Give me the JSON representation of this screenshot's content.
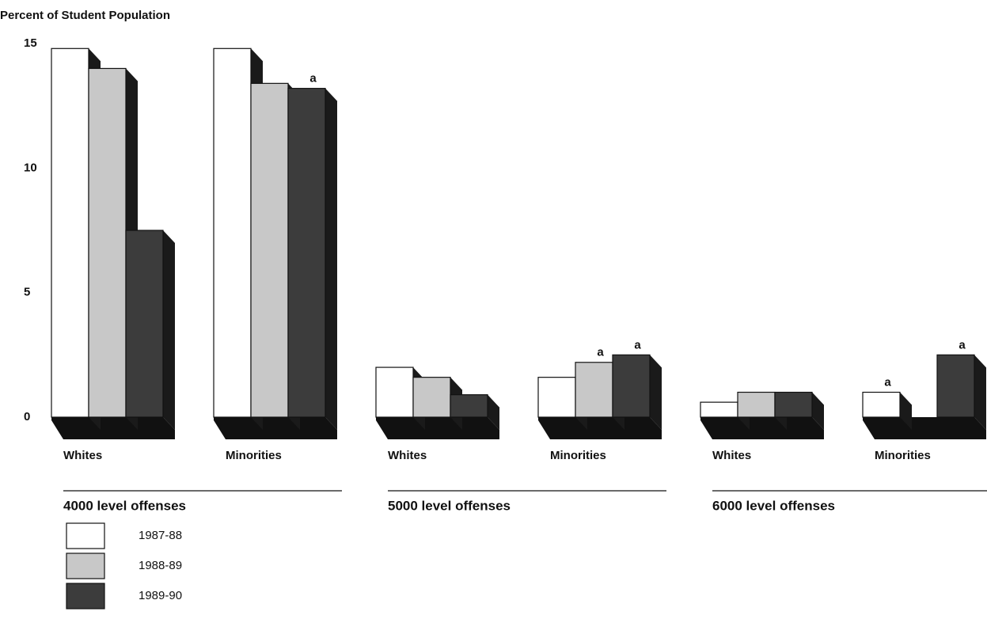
{
  "chart_data": {
    "type": "bar3d",
    "title": "Percent of Student Population",
    "groups": [
      "4000 level offenses",
      "5000 level offenses",
      "6000 level offenses"
    ],
    "categories": [
      "Whites",
      "Minorities",
      "Whites",
      "Minorities",
      "Whites",
      "Minorities"
    ],
    "series": [
      {
        "name": "1987-88",
        "color": "#ffffff",
        "values": [
          14.8,
          14.8,
          2.0,
          1.6,
          0.6,
          1.0
        ],
        "notes": [
          null,
          null,
          null,
          null,
          null,
          "a"
        ]
      },
      {
        "name": "1988-89",
        "color": "#c8c8c8",
        "values": [
          14.0,
          13.4,
          1.6,
          2.2,
          1.0,
          0
        ],
        "notes": [
          null,
          null,
          null,
          "a",
          null,
          null
        ]
      },
      {
        "name": "1989-90",
        "color": "#3c3c3c",
        "values": [
          7.5,
          13.2,
          0.9,
          2.5,
          1.0,
          2.5
        ],
        "notes": [
          null,
          "a",
          null,
          "a",
          null,
          "a"
        ]
      }
    ],
    "ylim": [
      0,
      15
    ],
    "yticks": [
      0,
      5,
      10,
      15
    ],
    "grid": false
  }
}
